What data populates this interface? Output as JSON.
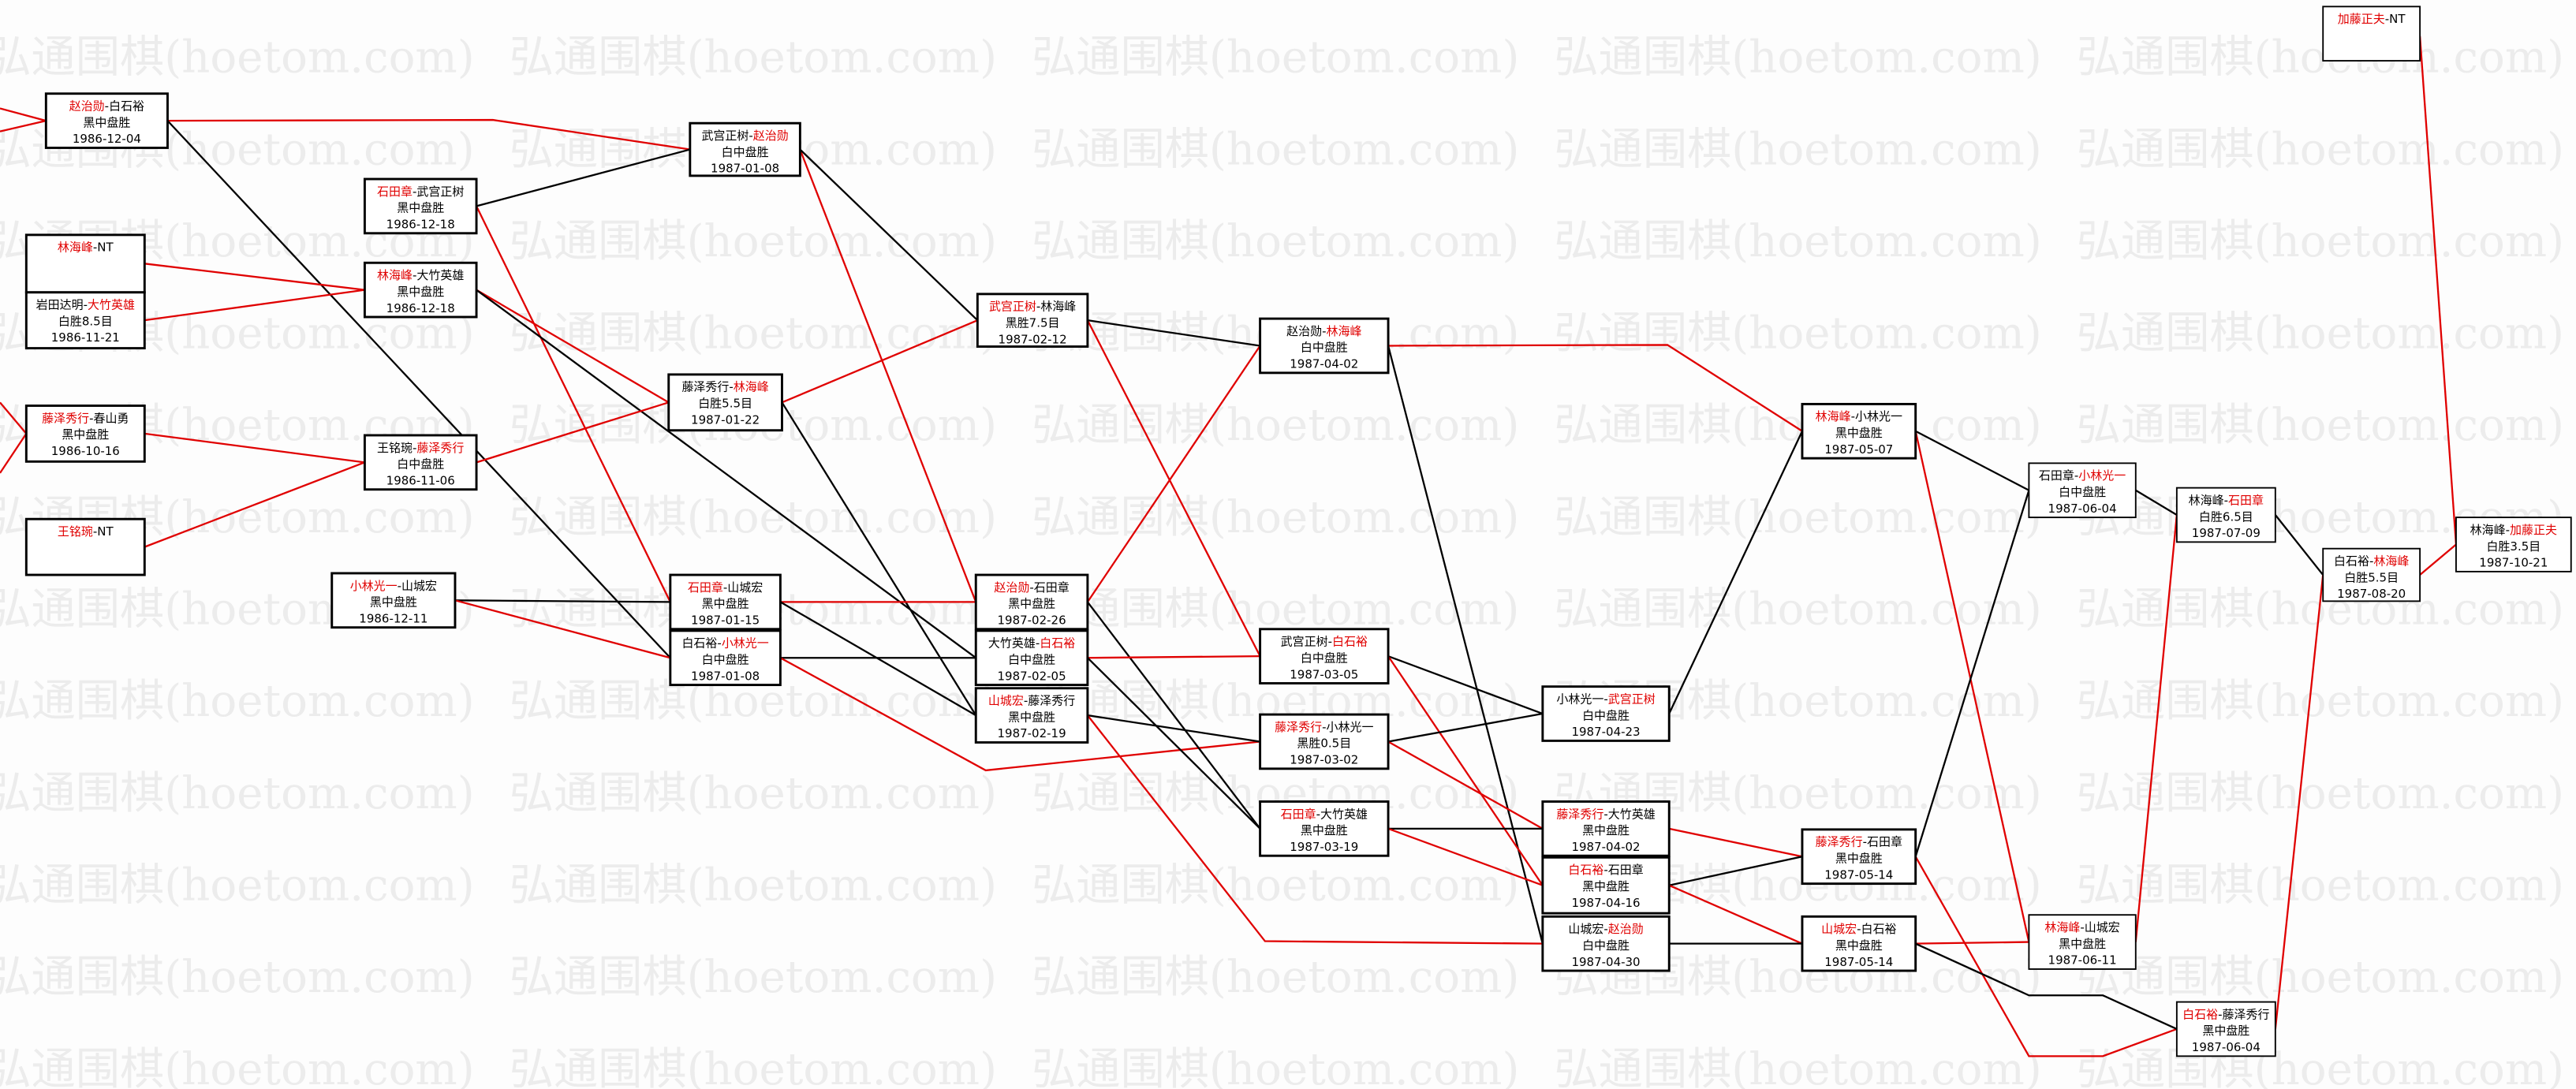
{
  "watermark": "弘通围棋(hoetom.com)",
  "colors": {
    "winner": "#e00000",
    "line_winner": "#e00000",
    "line_loser": "#000000",
    "box_border": "#000000"
  },
  "boxes": [
    {
      "id": "A1",
      "p1": "林海峰",
      "p2": "NT",
      "winner": 1,
      "result": "",
      "date": ""
    },
    {
      "id": "A2",
      "p1": "岩田达明",
      "p2": "大竹英雄",
      "winner": 2,
      "result": "白胜8.5目",
      "date": "1986-11-21"
    },
    {
      "id": "A3",
      "p1": "藤泽秀行",
      "p2": "春山勇",
      "winner": 1,
      "result": "黑中盘胜",
      "date": "1986-10-16"
    },
    {
      "id": "A4",
      "p1": "王铭琬",
      "p2": "NT",
      "winner": 1,
      "result": "",
      "date": ""
    },
    {
      "id": "B1",
      "p1": "赵治勋",
      "p2": "白石裕",
      "winner": 1,
      "result": "黑中盘胜",
      "date": "1986-12-04"
    },
    {
      "id": "B2",
      "p1": "石田章",
      "p2": "武宫正树",
      "winner": 1,
      "result": "黑中盘胜",
      "date": "1986-12-18"
    },
    {
      "id": "B3",
      "p1": "林海峰",
      "p2": "大竹英雄",
      "winner": 1,
      "result": "黑中盘胜",
      "date": "1986-12-18"
    },
    {
      "id": "B4",
      "p1": "王铭琬",
      "p2": "藤泽秀行",
      "winner": 2,
      "result": "白中盘胜",
      "date": "1986-11-06"
    },
    {
      "id": "B5",
      "p1": "小林光一",
      "p2": "山城宏",
      "winner": 1,
      "result": "黑中盘胜",
      "date": "1986-12-11"
    },
    {
      "id": "C1",
      "p1": "武宫正树",
      "p2": "赵治勋",
      "winner": 2,
      "result": "白中盘胜",
      "date": "1987-01-08"
    },
    {
      "id": "C2",
      "p1": "藤泽秀行",
      "p2": "林海峰",
      "winner": 2,
      "result": "白胜5.5目",
      "date": "1987-01-22"
    },
    {
      "id": "C3",
      "p1": "石田章",
      "p2": "山城宏",
      "winner": 1,
      "result": "黑中盘胜",
      "date": "1987-01-15"
    },
    {
      "id": "C4",
      "p1": "白石裕",
      "p2": "小林光一",
      "winner": 2,
      "result": "白中盘胜",
      "date": "1987-01-08"
    },
    {
      "id": "D1",
      "p1": "武宫正树",
      "p2": "林海峰",
      "winner": 1,
      "result": "黑胜7.5目",
      "date": "1987-02-12"
    },
    {
      "id": "D2",
      "p1": "赵治勋",
      "p2": "石田章",
      "winner": 1,
      "result": "黑中盘胜",
      "date": "1987-02-26"
    },
    {
      "id": "D3",
      "p1": "大竹英雄",
      "p2": "白石裕",
      "winner": 2,
      "result": "白中盘胜",
      "date": "1987-02-05"
    },
    {
      "id": "D4",
      "p1": "山城宏",
      "p2": "藤泽秀行",
      "winner": 1,
      "result": "黑中盘胜",
      "date": "1987-02-19"
    },
    {
      "id": "E1",
      "p1": "赵治勋",
      "p2": "林海峰",
      "winner": 2,
      "result": "白中盘胜",
      "date": "1987-04-02"
    },
    {
      "id": "E2",
      "p1": "武宫正树",
      "p2": "白石裕",
      "winner": 2,
      "result": "白中盘胜",
      "date": "1987-03-05"
    },
    {
      "id": "E3",
      "p1": "藤泽秀行",
      "p2": "小林光一",
      "winner": 1,
      "result": "黑胜0.5目",
      "date": "1987-03-02"
    },
    {
      "id": "E4",
      "p1": "石田章",
      "p2": "大竹英雄",
      "winner": 1,
      "result": "黑中盘胜",
      "date": "1987-03-19"
    },
    {
      "id": "F1",
      "p1": "小林光一",
      "p2": "武宫正树",
      "winner": 2,
      "result": "白中盘胜",
      "date": "1987-04-23"
    },
    {
      "id": "F2",
      "p1": "藤泽秀行",
      "p2": "大竹英雄",
      "winner": 1,
      "result": "黑中盘胜",
      "date": "1987-04-02"
    },
    {
      "id": "F3",
      "p1": "白石裕",
      "p2": "石田章",
      "winner": 1,
      "result": "黑中盘胜",
      "date": "1987-04-16"
    },
    {
      "id": "F4",
      "p1": "山城宏",
      "p2": "赵治勋",
      "winner": 2,
      "result": "白中盘胜",
      "date": "1987-04-30"
    },
    {
      "id": "G1",
      "p1": "林海峰",
      "p2": "小林光一",
      "winner": 1,
      "result": "黑中盘胜",
      "date": "1987-05-07"
    },
    {
      "id": "G2",
      "p1": "藤泽秀行",
      "p2": "石田章",
      "winner": 1,
      "result": "黑中盘胜",
      "date": "1987-05-14"
    },
    {
      "id": "G3",
      "p1": "山城宏",
      "p2": "白石裕",
      "winner": 1,
      "result": "黑中盘胜",
      "date": "1987-05-14"
    },
    {
      "id": "H1",
      "p1": "石田章",
      "p2": "小林光一",
      "winner": 2,
      "result": "白中盘胜",
      "date": "1987-06-04"
    },
    {
      "id": "H2",
      "p1": "林海峰",
      "p2": "山城宏",
      "winner": 1,
      "result": "黑中盘胜",
      "date": "1987-06-11"
    },
    {
      "id": "I1",
      "p1": "林海峰",
      "p2": "石田章",
      "winner": 2,
      "result": "白胜6.5目",
      "date": "1987-07-09"
    },
    {
      "id": "I2",
      "p1": "白石裕",
      "p2": "藤泽秀行",
      "winner": 1,
      "result": "黑中盘胜",
      "date": "1987-06-04"
    },
    {
      "id": "J1",
      "p1": "白石裕",
      "p2": "林海峰",
      "winner": 2,
      "result": "白胜5.5目",
      "date": "1987-08-20"
    },
    {
      "id": "J2",
      "p1": "加藤正夫",
      "p2": "NT",
      "winner": 1,
      "result": "",
      "date": ""
    },
    {
      "id": "K1",
      "p1": "林海峰",
      "p2": "加藤正夫",
      "winner": 2,
      "result": "白胜3.5目",
      "date": "1987-10-21"
    }
  ]
}
